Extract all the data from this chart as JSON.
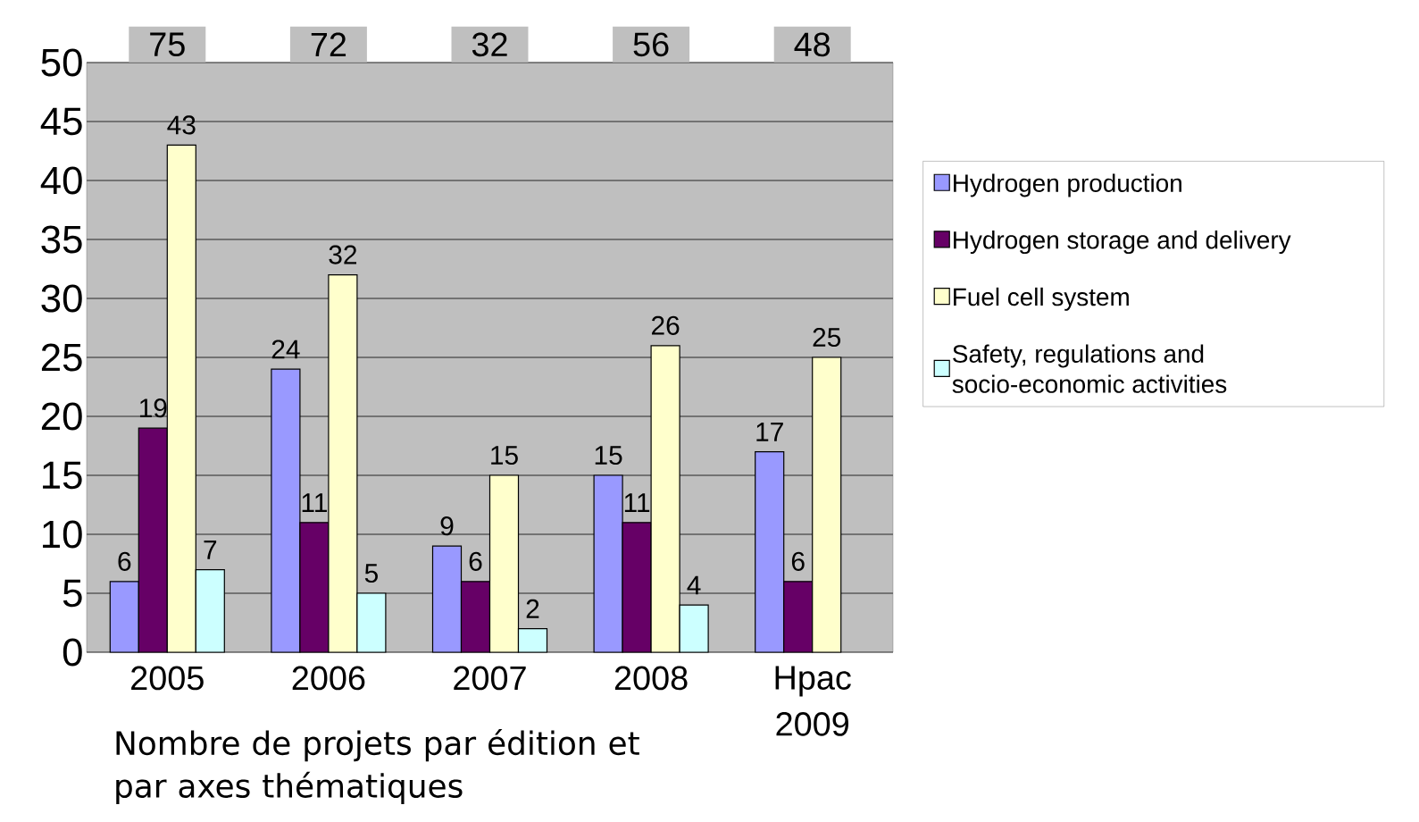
{
  "chart_data": {
    "type": "bar",
    "xlabel": "Nombre de projets par édition et par axes thématiques",
    "categories": [
      "2005",
      "2006",
      "2007",
      "2008",
      "Hpac 2009"
    ],
    "series": [
      {
        "name": "Hydrogen production",
        "color": "#9999ff",
        "values": [
          6,
          24,
          9,
          15,
          17
        ]
      },
      {
        "name": "Hydrogen storage and delivery",
        "color": "#660066",
        "values": [
          19,
          11,
          6,
          11,
          6
        ]
      },
      {
        "name": "Fuel cell system",
        "color": "#ffffcc",
        "values": [
          43,
          32,
          15,
          26,
          25
        ]
      },
      {
        "name": "Safety, regulations and socio-economic activities",
        "color": "#ccffff",
        "values": [
          7,
          5,
          2,
          4,
          null
        ]
      }
    ],
    "annotations": [
      "75",
      "72",
      "32",
      "56",
      "48"
    ],
    "ylim": [
      0,
      50
    ],
    "yticks": [
      0,
      5,
      10,
      15,
      20,
      25,
      30,
      35,
      40,
      45,
      50
    ],
    "grid": "y",
    "legend": "right",
    "data_labels": true
  }
}
